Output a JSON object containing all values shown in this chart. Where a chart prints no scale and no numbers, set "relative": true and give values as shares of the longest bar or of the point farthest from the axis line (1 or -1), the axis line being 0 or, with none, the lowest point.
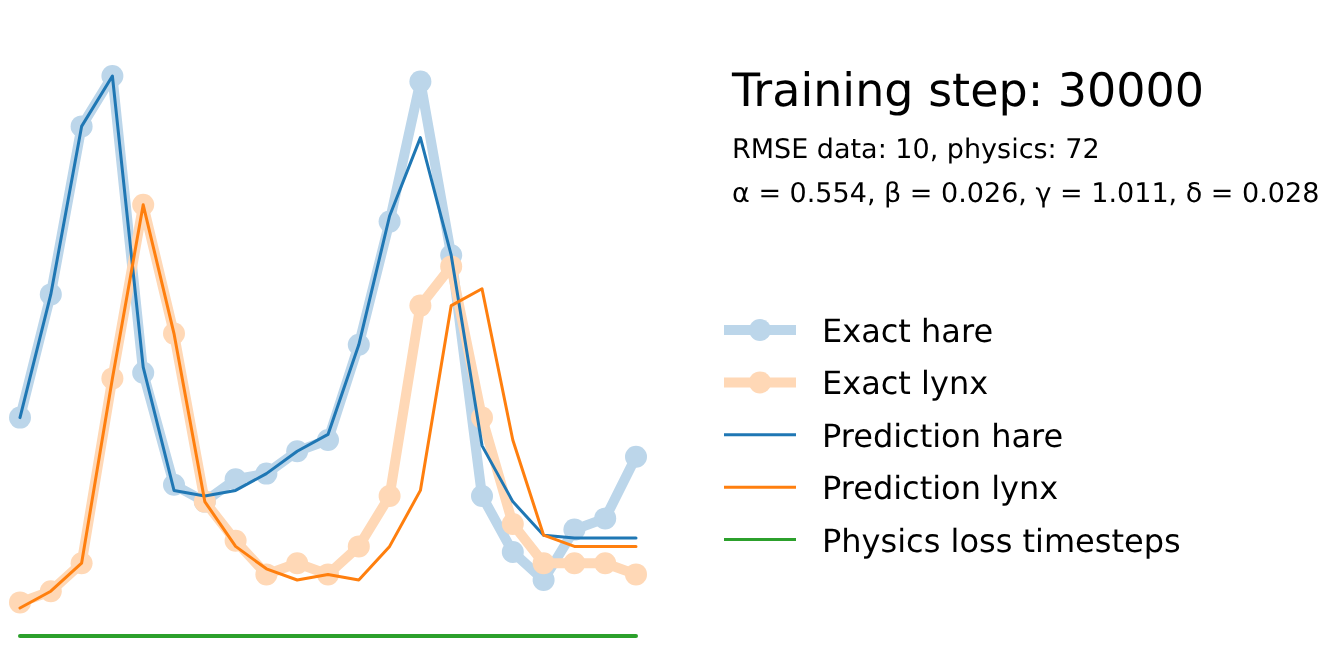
{
  "chart_data": {
    "type": "line",
    "title": "Training step: 30000",
    "subtitle": "RMSE data: 10, physics: 72",
    "annotations": [
      "α = 0.554, β = 0.026, γ = 1.011, δ = 0.028"
    ],
    "relative": true,
    "legend": "right",
    "categories": [
      null,
      null,
      null,
      null,
      null,
      null,
      null,
      null,
      null,
      null,
      null,
      null,
      null,
      null,
      null,
      null,
      null,
      null,
      null,
      null,
      null
    ],
    "series": [
      {
        "name": "Exact hare",
        "color": "#bcd6ea",
        "marker": "circle",
        "values": [
          0.39,
          0.61,
          0.91,
          1.0,
          0.47,
          0.27,
          0.24,
          0.28,
          0.29,
          0.33,
          0.35,
          0.52,
          0.74,
          0.99,
          0.68,
          0.25,
          0.15,
          0.1,
          0.19,
          0.21,
          0.32
        ]
      },
      {
        "name": "Exact lynx",
        "color": "#ffd8b6",
        "marker": "circle",
        "values": [
          0.06,
          0.08,
          0.13,
          0.46,
          0.77,
          0.54,
          0.24,
          0.17,
          0.11,
          0.13,
          0.11,
          0.16,
          0.25,
          0.59,
          0.66,
          0.39,
          0.2,
          0.13,
          0.13,
          0.13,
          0.11
        ]
      },
      {
        "name": "Prediction hare",
        "color": "#1f77b4",
        "marker": "none",
        "values": [
          0.39,
          0.61,
          0.91,
          1.0,
          0.48,
          0.26,
          0.25,
          0.26,
          0.29,
          0.33,
          0.36,
          0.52,
          0.75,
          0.89,
          0.68,
          0.34,
          0.24,
          0.18,
          0.175,
          0.175,
          0.175
        ]
      },
      {
        "name": "Prediction lynx",
        "color": "#ff7f0e",
        "marker": "none",
        "values": [
          0.05,
          0.08,
          0.13,
          0.46,
          0.77,
          0.54,
          0.24,
          0.16,
          0.12,
          0.1,
          0.11,
          0.1,
          0.16,
          0.26,
          0.59,
          0.62,
          0.35,
          0.18,
          0.16,
          0.16,
          0.16
        ]
      },
      {
        "name": "Physics loss timesteps",
        "color": "#2ca02c",
        "marker": "none",
        "values": [
          0,
          0,
          0,
          0,
          0,
          0,
          0,
          0,
          0,
          0,
          0,
          0,
          0,
          0,
          0,
          0,
          0,
          0,
          0,
          0,
          0
        ]
      }
    ]
  }
}
